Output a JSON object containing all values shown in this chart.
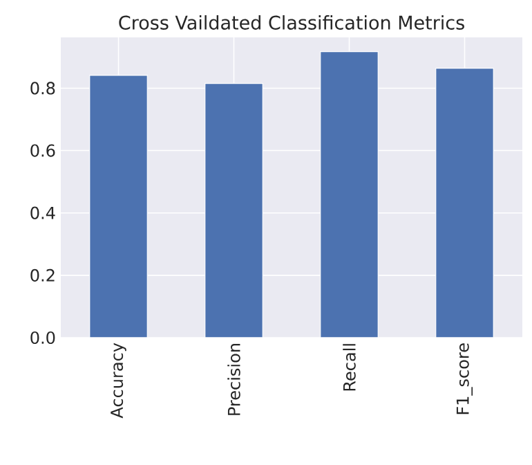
{
  "chart_data": {
    "type": "bar",
    "title": "Cross Vaildated Classification Metrics",
    "categories": [
      "Accuracy",
      "Precision",
      "Recall",
      "F1_score"
    ],
    "values": [
      0.841,
      0.815,
      0.917,
      0.864
    ],
    "color": "#4c72b0",
    "ylim": [
      0,
      0.963
    ],
    "yticks": [
      {
        "value": 0,
        "label": "0.0"
      },
      0.2,
      0.4,
      0.6,
      0.8
    ],
    "grid": true
  }
}
